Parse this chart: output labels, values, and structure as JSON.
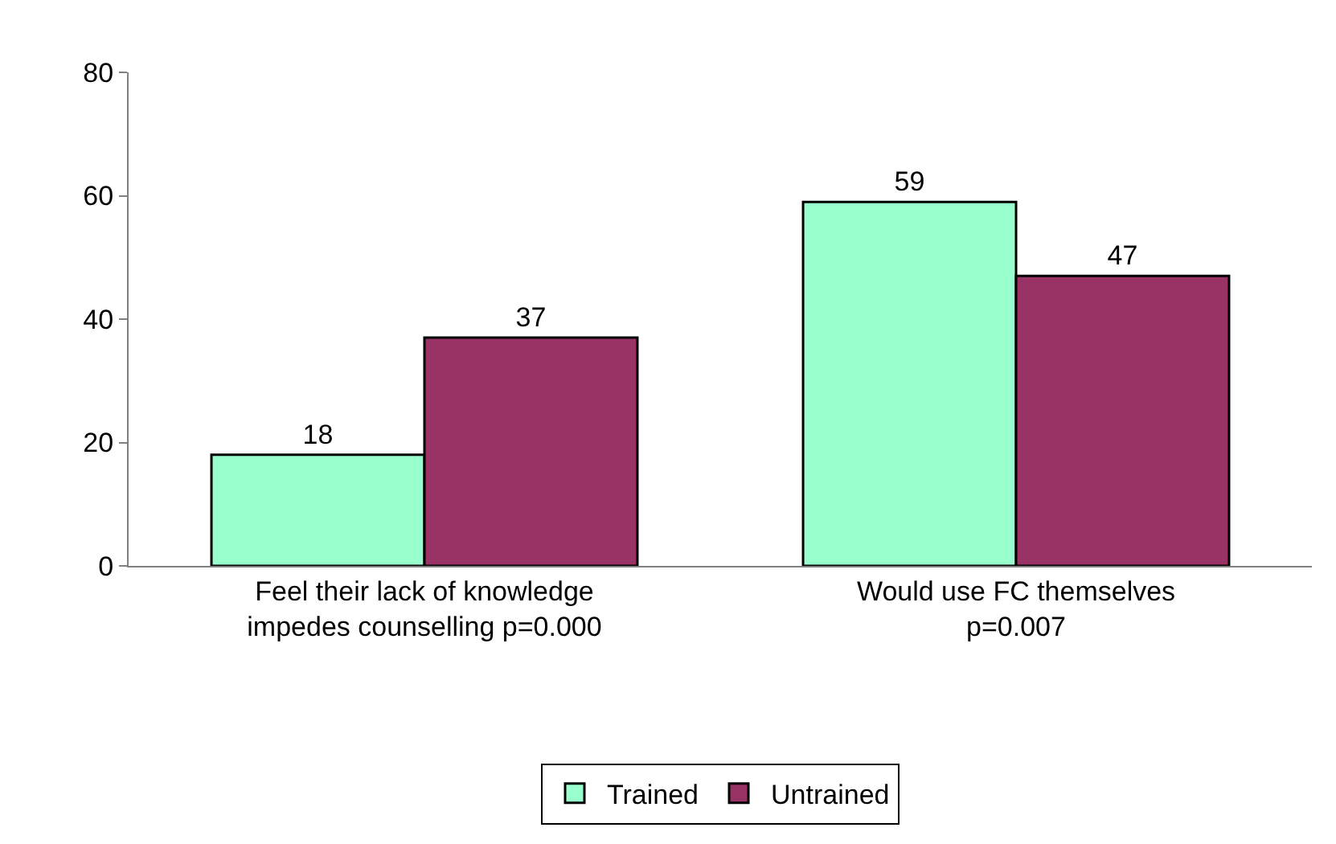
{
  "chart_data": {
    "type": "bar",
    "categories": [
      "Feel their lack of knowledge\nimpedes counselling p=0.000",
      "Would use FC themselves\np=0.007"
    ],
    "series": [
      {
        "name": "Trained",
        "color": "#99ffcc",
        "values": [
          18,
          59
        ]
      },
      {
        "name": "Untrained",
        "color": "#993366",
        "values": [
          37,
          47
        ]
      }
    ],
    "ylim": [
      0,
      80
    ],
    "yticks": [
      0,
      20,
      40,
      60,
      80
    ],
    "legend": "bottom",
    "data_labels": true
  }
}
